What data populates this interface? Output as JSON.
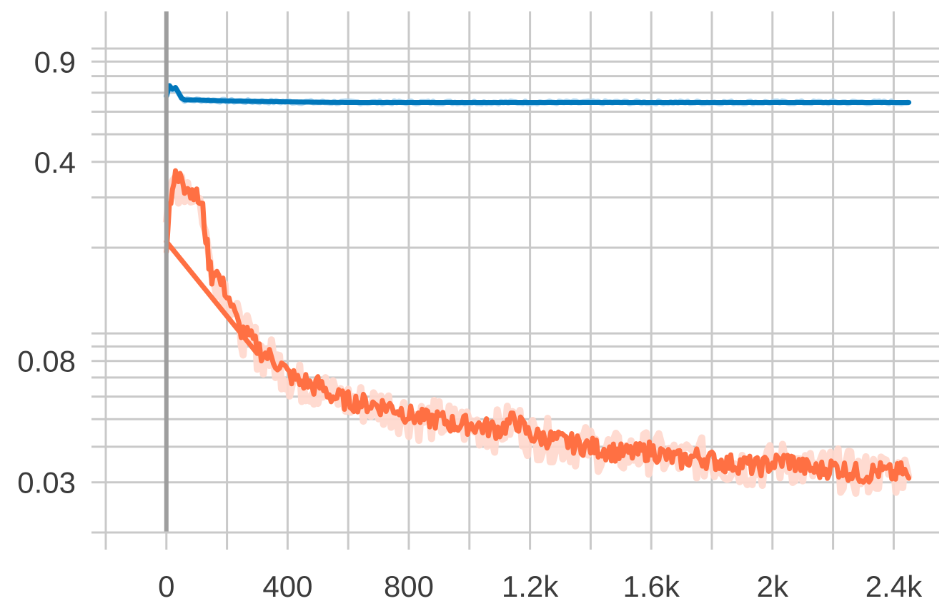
{
  "chart_data": {
    "type": "line",
    "title": "",
    "xlabel": "",
    "ylabel": "",
    "y_scale": "log",
    "xlim": [
      -200,
      2550
    ],
    "ylim": [
      0.02,
      1.35
    ],
    "grid": true,
    "x_ticks": [
      {
        "value": 0,
        "label": "0"
      },
      {
        "value": 400,
        "label": "400"
      },
      {
        "value": 800,
        "label": "800"
      },
      {
        "value": 1200,
        "label": "1.2k"
      },
      {
        "value": 1600,
        "label": "1.6k"
      },
      {
        "value": 2000,
        "label": "2k"
      },
      {
        "value": 2400,
        "label": "2.4k"
      }
    ],
    "y_ticks": [
      {
        "value": 0.9,
        "label": "0.9"
      },
      {
        "value": 0.4,
        "label": "0.4"
      },
      {
        "value": 0.08,
        "label": "0.08"
      },
      {
        "value": 0.03,
        "label": "0.03"
      }
    ],
    "series": [
      {
        "color": "#0077bb",
        "band_color": "#a9d3ee",
        "x": [
          0,
          10,
          20,
          30,
          40,
          50,
          60,
          100,
          200,
          300,
          400,
          500,
          600,
          800,
          1000,
          1200,
          1400,
          1600,
          1800,
          2000,
          2200,
          2400,
          2450
        ],
        "y": [
          0.68,
          0.74,
          0.72,
          0.73,
          0.7,
          0.67,
          0.66,
          0.66,
          0.655,
          0.652,
          0.65,
          0.648,
          0.647,
          0.647,
          0.647,
          0.647,
          0.647,
          0.647,
          0.647,
          0.647,
          0.647,
          0.647,
          0.647
        ]
      },
      {
        "color": "#ff7043",
        "band_color": "#ffd7cc",
        "x": [
          0,
          10,
          20,
          30,
          40,
          50,
          60,
          70,
          80,
          90,
          100,
          110,
          120,
          130,
          140,
          150,
          160,
          180,
          200,
          220,
          240,
          260,
          280,
          300,
          320,
          340,
          360,
          380,
          400,
          420,
          440,
          460,
          480,
          500,
          550,
          600,
          650,
          700,
          750,
          800,
          850,
          900,
          950,
          1000,
          1050,
          1100,
          1150,
          1200,
          1250,
          1300,
          1350,
          1400,
          1450,
          1500,
          1550,
          1600,
          1650,
          1700,
          1750,
          1800,
          1850,
          1900,
          1950,
          2000,
          2050,
          2100,
          2150,
          2200,
          2250,
          2300,
          2350,
          2400,
          2430,
          2450
        ],
        "y": [
          0.21,
          0.28,
          0.33,
          0.35,
          0.34,
          0.36,
          0.33,
          0.34,
          0.31,
          0.32,
          0.3,
          0.29,
          0.27,
          0.22,
          0.18,
          0.16,
          0.17,
          0.15,
          0.14,
          0.12,
          0.105,
          0.1,
          0.095,
          0.09,
          0.085,
          0.083,
          0.08,
          0.077,
          0.072,
          0.07,
          0.067,
          0.068,
          0.065,
          0.066,
          0.06,
          0.058,
          0.057,
          0.056,
          0.055,
          0.052,
          0.05,
          0.05,
          0.048,
          0.048,
          0.047,
          0.046,
          0.05,
          0.044,
          0.043,
          0.042,
          0.041,
          0.04,
          0.039,
          0.038,
          0.038,
          0.039,
          0.037,
          0.036,
          0.037,
          0.036,
          0.035,
          0.035,
          0.034,
          0.035,
          0.036,
          0.034,
          0.033,
          0.034,
          0.033,
          0.032,
          0.033,
          0.032,
          0.033,
          0.031
        ]
      }
    ],
    "annotations": [
      {
        "type": "line",
        "color": "#ff7043",
        "from": {
          "x": 0,
          "y": 0.21
        },
        "to": {
          "x": 300,
          "y": 0.085
        }
      }
    ]
  }
}
